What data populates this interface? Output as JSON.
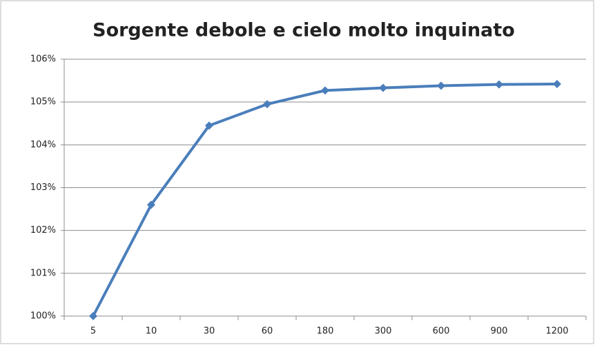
{
  "chart_data": {
    "type": "line",
    "title": "Sorgente debole e cielo molto inquinato",
    "categories": [
      "5",
      "10",
      "30",
      "60",
      "180",
      "300",
      "600",
      "900",
      "1200"
    ],
    "series": [
      {
        "name": null,
        "color": "#4a7ebb",
        "values": [
          100,
          102.6,
          104.45,
          104.95,
          105.27,
          105.33,
          105.38,
          105.41,
          105.42
        ]
      }
    ],
    "ylim": [
      100,
      106
    ],
    "yticks": [
      {
        "value": 100,
        "label": "100%"
      },
      {
        "value": 101,
        "label": "101%"
      },
      {
        "value": 102,
        "label": "102%"
      },
      {
        "value": 103,
        "label": "103%"
      },
      {
        "value": 104,
        "label": "104%"
      },
      {
        "value": 105,
        "label": "105%"
      },
      {
        "value": 106,
        "label": "106%"
      }
    ],
    "grid": true,
    "legend": false
  }
}
